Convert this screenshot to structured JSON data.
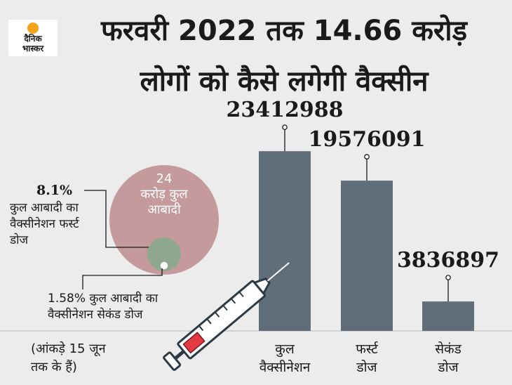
{
  "header": {
    "logo_line1": "दैनिक",
    "logo_line2": "भास्कर",
    "title_line1": "फरवरी 2022 तक 14.66 करोड़",
    "title_line2": "लोगों को कैसे लगेगी वैक्सीन"
  },
  "population": {
    "big_line1": "24",
    "big_line2": "करोड़ कुल",
    "big_line3": "आबादी",
    "first_pct": "8.1%",
    "first_line1": "कुल आबादी का",
    "first_line2": "वैक्सीनेशन फर्स्ट",
    "first_line3": "डोज",
    "second_line1": "1.58% कुल आबादी का",
    "second_line2": "वैक्सीनेशन सेकंड डोज",
    "colors": {
      "big": "#c49a9c",
      "first": "#8ea78e",
      "second": "#ffffff"
    }
  },
  "footnote": {
    "line1": "(आंकड़े 15 जून",
    "line2": "तक के हैं)"
  },
  "chart_data": {
    "type": "bar",
    "categories": [
      "कुल वैक्सीनेशन",
      "फर्स्ट डोज",
      "सेकंड डोज"
    ],
    "category_lines": [
      [
        "कुल",
        "वैक्सीनेशन"
      ],
      [
        "फर्स्ट",
        "डोज"
      ],
      [
        "सेकंड",
        "डोज"
      ]
    ],
    "values": [
      23412988,
      19576091,
      3836897
    ],
    "value_labels": [
      "23412988",
      "19576091",
      "3836897"
    ],
    "ylim": [
      0,
      27000000
    ],
    "grid": false,
    "bar_color": "#5f6e78"
  }
}
